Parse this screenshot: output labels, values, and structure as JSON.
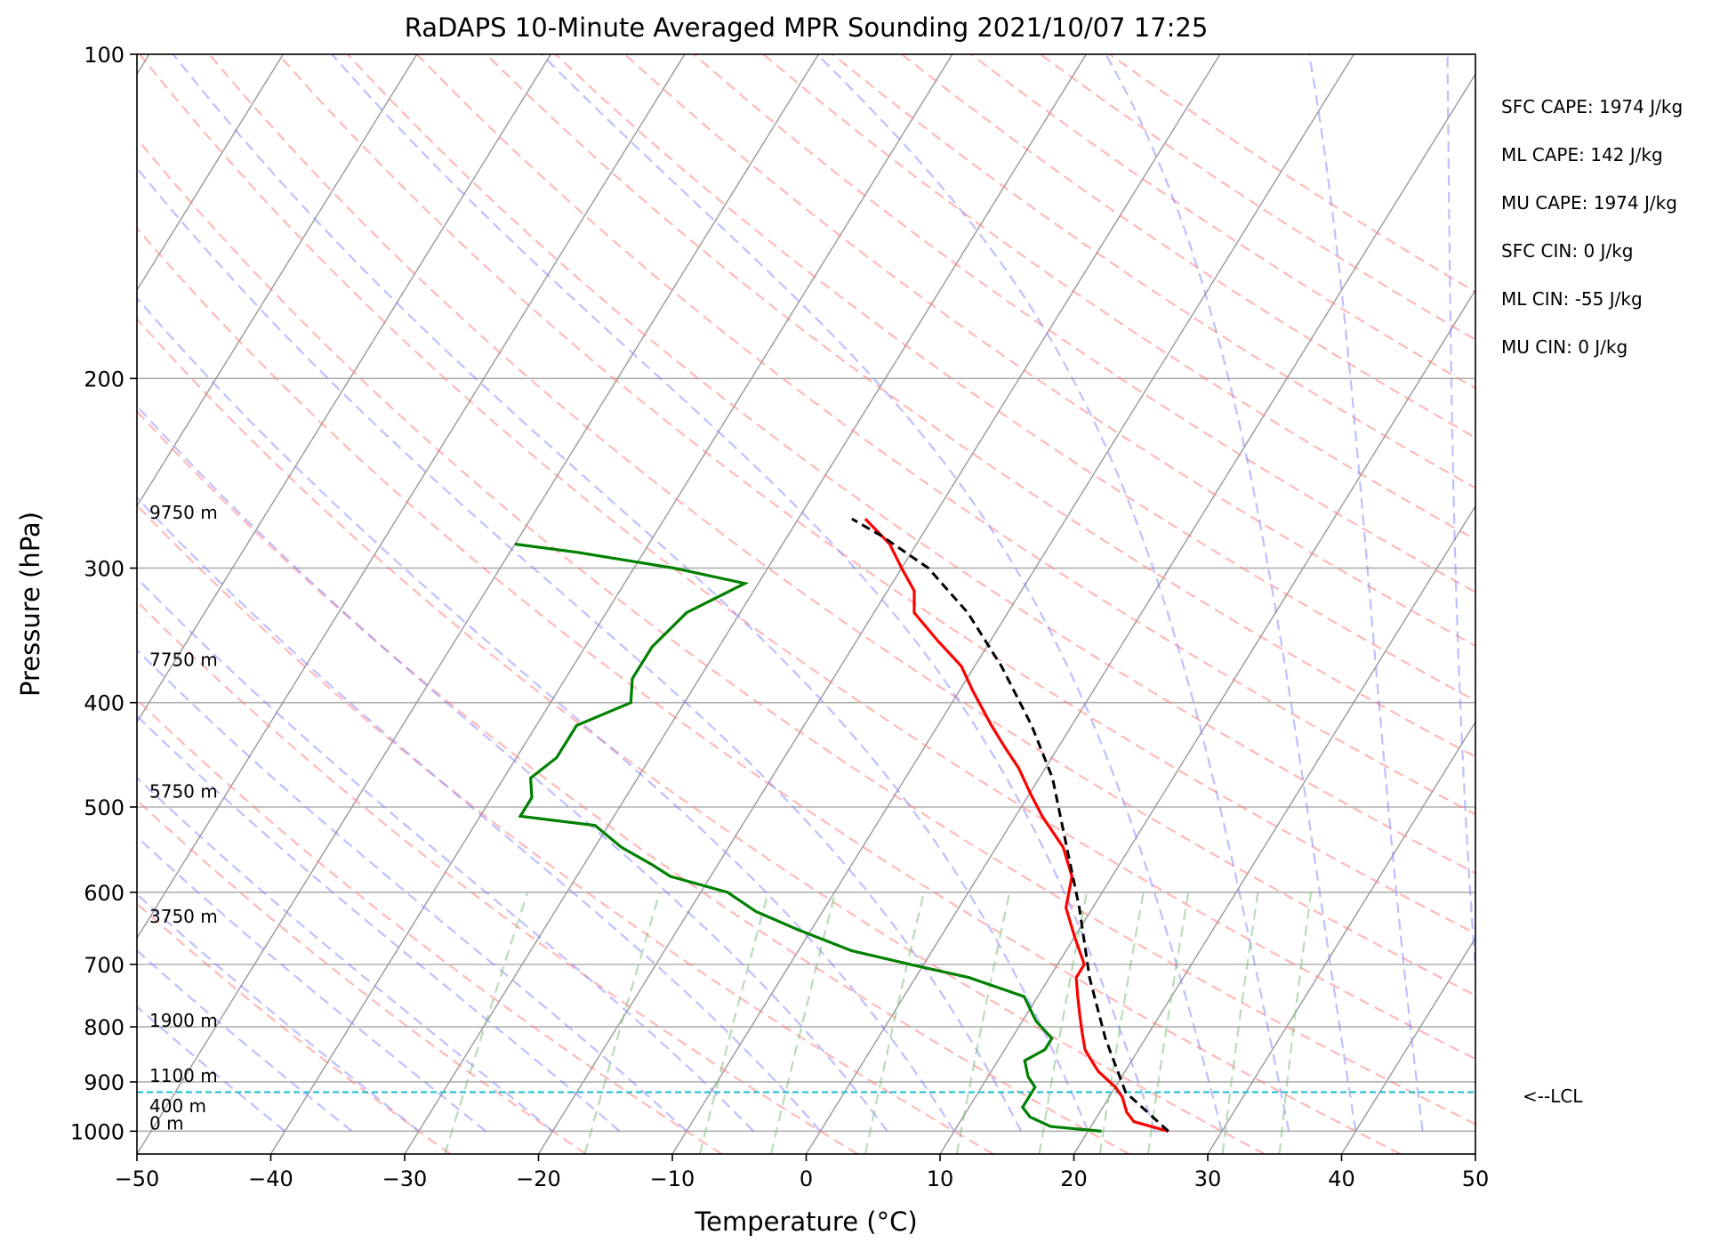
{
  "title": "RaDAPS 10-Minute Averaged MPR Sounding 2021/10/07 17:25",
  "chart_data": {
    "type": "line",
    "subtype": "skew-t log-p",
    "xlabel": "Temperature (°C)",
    "ylabel": "Pressure (hPa)",
    "xlim": [
      -50,
      50
    ],
    "ylim": [
      1050,
      100
    ],
    "y_scale": "log",
    "grid": true,
    "x_ticks": [
      "−50",
      "−40",
      "−30",
      "−20",
      "−10",
      "0",
      "10",
      "20",
      "30",
      "40",
      "50"
    ],
    "y_ticks": [
      "100",
      "200",
      "300",
      "400",
      "500",
      "600",
      "700",
      "800",
      "900",
      "1000"
    ],
    "height_labels": [
      "9750 m",
      "7750 m",
      "5750 m",
      "3750 m",
      "1900 m",
      "1100 m",
      "400 m",
      "0 m"
    ],
    "series": [
      {
        "color": "#ff0000",
        "points": [
          [
            26,
            1000
          ],
          [
            23,
            980
          ],
          [
            22,
            960
          ],
          [
            21,
            930
          ],
          [
            20,
            910
          ],
          [
            18,
            880
          ],
          [
            17,
            860
          ],
          [
            16,
            840
          ],
          [
            15,
            810
          ],
          [
            14,
            780
          ],
          [
            13,
            750
          ],
          [
            12,
            720
          ],
          [
            12,
            700
          ],
          [
            10,
            660
          ],
          [
            8,
            620
          ],
          [
            7,
            580
          ],
          [
            5,
            545
          ],
          [
            2,
            510
          ],
          [
            0,
            485
          ],
          [
            -2,
            460
          ],
          [
            -4,
            440
          ],
          [
            -6,
            420
          ],
          [
            -9,
            390
          ],
          [
            -11,
            370
          ],
          [
            -14,
            350
          ],
          [
            -17,
            330
          ],
          [
            -18,
            315
          ],
          [
            -20,
            300
          ],
          [
            -22,
            285
          ],
          [
            -25,
            270
          ]
        ]
      },
      {
        "color": "#008000",
        "points": [
          [
            21,
            1000
          ],
          [
            17,
            990
          ],
          [
            15,
            970
          ],
          [
            14,
            950
          ],
          [
            14,
            930
          ],
          [
            14,
            910
          ],
          [
            13,
            890
          ],
          [
            12,
            860
          ],
          [
            13,
            840
          ],
          [
            13,
            820
          ],
          [
            11,
            790
          ],
          [
            9,
            750
          ],
          [
            4,
            720
          ],
          [
            -1,
            700
          ],
          [
            -6,
            680
          ],
          [
            -11,
            650
          ],
          [
            -15,
            625
          ],
          [
            -18,
            600
          ],
          [
            -23,
            580
          ],
          [
            -25,
            565
          ],
          [
            -28,
            545
          ],
          [
            -31,
            520
          ],
          [
            -37,
            510
          ],
          [
            -37,
            490
          ],
          [
            -38,
            470
          ],
          [
            -37,
            450
          ],
          [
            -37,
            420
          ],
          [
            -34,
            400
          ],
          [
            -35,
            380
          ],
          [
            -35,
            355
          ],
          [
            -34,
            330
          ],
          [
            -31,
            310
          ],
          [
            -37,
            300
          ],
          [
            -45,
            290
          ],
          [
            -50,
            285
          ]
        ]
      },
      {
        "name": "parcel",
        "color": "#000000",
        "dash": true,
        "points": [
          [
            26,
            1000
          ],
          [
            21,
            920
          ],
          [
            17,
            820
          ],
          [
            13,
            720
          ],
          [
            9,
            620
          ],
          [
            5,
            540
          ],
          [
            1,
            470
          ],
          [
            -3,
            420
          ],
          [
            -8,
            370
          ],
          [
            -13,
            330
          ],
          [
            -18,
            300
          ],
          [
            -23,
            280
          ],
          [
            -26,
            270
          ]
        ]
      }
    ],
    "lcl_pressure": 920,
    "lcl_label": "<--LCL",
    "stats": [
      {
        "label": "SFC CAPE",
        "value": "1974 J/kg"
      },
      {
        "label": "ML CAPE",
        "value": "142 J/kg"
      },
      {
        "label": "MU CAPE",
        "value": "1974 J/kg"
      },
      {
        "label": "SFC CIN",
        "value": "0 J/kg"
      },
      {
        "label": "ML CIN",
        "value": "-55 J/kg"
      },
      {
        "label": "MU CIN",
        "value": "0 J/kg"
      }
    ],
    "background_lines": {
      "isotherms_color": "#999999",
      "dry_adiabats_color": "#ff8080",
      "moist_adiabats_color": "#8080ff",
      "mixing_ratio_color": "#80c080"
    }
  }
}
